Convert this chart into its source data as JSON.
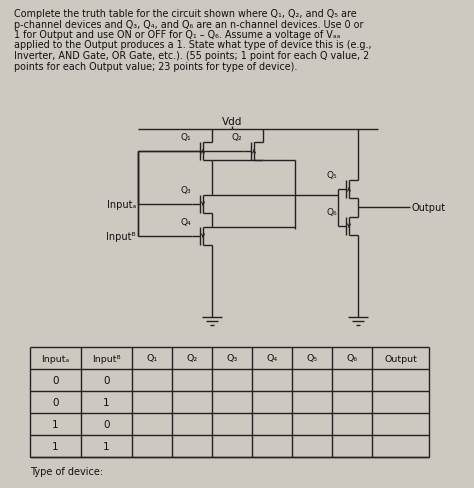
{
  "bg_color": "#cdc9c0",
  "text_color": "#111111",
  "title_lines": [
    "Complete the truth table for the circuit shown where Q₁, Q₂, and Q₅ are",
    "p-channel devices and Q₃, Q₄, and Q₆ are an n-channel devices. Use 0 or",
    "1 for Output and use ON or OFF for Q₁ – Q₆. Assume a voltage of Vₐₐ",
    "applied to the Output produces a 1. State what type of device this is (e.g.,",
    "Inverter, AND Gate, OR Gate, etc.). (55 points; 1 point for each Q value, 2",
    "points for each Output value; 23 points for type of device)."
  ],
  "vdd_label": "Vdd",
  "output_label": "Output",
  "inputA_label": "Inputₐ",
  "inputB_label": "Inputᴮ",
  "q_labels": [
    "Q₁",
    "Q₂",
    "Q₃",
    "Q₄",
    "Q₅",
    "Q₆"
  ],
  "table_headers": [
    "Inputₐ",
    "Inputᴮ",
    "Q₁",
    "Q₂",
    "Q₃",
    "Q₄",
    "Q₅",
    "Q₆",
    "Output"
  ],
  "table_rows": [
    [
      "0",
      "0",
      "",
      "",
      "",
      "",
      "",
      "",
      ""
    ],
    [
      "0",
      "1",
      "",
      "",
      "",
      "",
      "",
      "",
      ""
    ],
    [
      "1",
      "0",
      "",
      "",
      "",
      "",
      "",
      "",
      ""
    ],
    [
      "1",
      "1",
      "",
      "",
      "",
      "",
      "",
      "",
      ""
    ]
  ],
  "type_of_device_label": "Type of device:",
  "line_color": "#222222",
  "lw": 1.0
}
